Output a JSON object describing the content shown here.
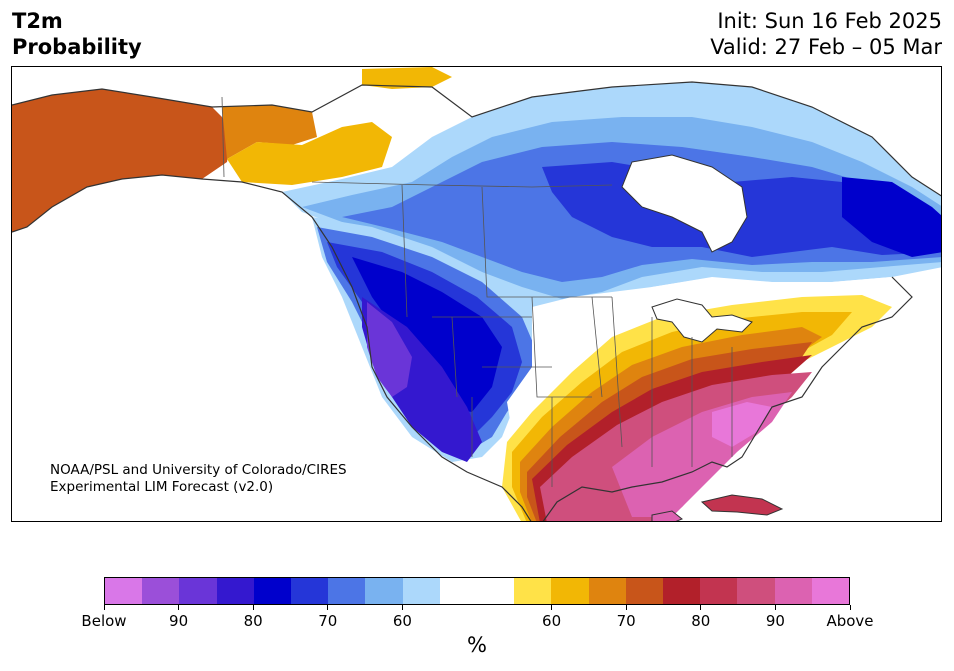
{
  "header": {
    "title_line1": "T2m",
    "title_line2": "Probability",
    "init": "Init: Sun 16 Feb 2025",
    "valid": "Valid: 27 Feb – 05 Mar"
  },
  "credit": {
    "line1": "NOAA/PSL and University of Colorado/CIRES",
    "line2": "Experimental LIM Forecast (v2.0)"
  },
  "colorbar": {
    "unit": "%",
    "colors": [
      "#d977e8",
      "#9b4fd9",
      "#6a35d8",
      "#3418cf",
      "#0000cc",
      "#2536d8",
      "#4c75e6",
      "#79b2f0",
      "#acd8fb",
      "#ffffff",
      "#ffffff",
      "#ffe248",
      "#f2b705",
      "#df840f",
      "#c8551a",
      "#b2202a",
      "#c23450",
      "#cf4f7d",
      "#dc62b1",
      "#e877d9"
    ],
    "ticks": [
      "Below",
      "90",
      "80",
      "70",
      "60",
      "60",
      "70",
      "80",
      "90",
      "Above"
    ]
  },
  "map": {
    "colors": {
      "strong_below": "#0000cc",
      "below": "#3418cf",
      "mod_below": "#4c75e6",
      "light_below": "#79b2f0",
      "pale_below": "#acd8fb",
      "neutral": "#ffffff",
      "pale_above": "#ffe248",
      "light_above": "#f2b705",
      "mod_above": "#df840f",
      "above": "#c8551a",
      "strong_above": "#b2202a",
      "pink": "#cf4f7d",
      "magenta": "#dc62b1"
    }
  }
}
